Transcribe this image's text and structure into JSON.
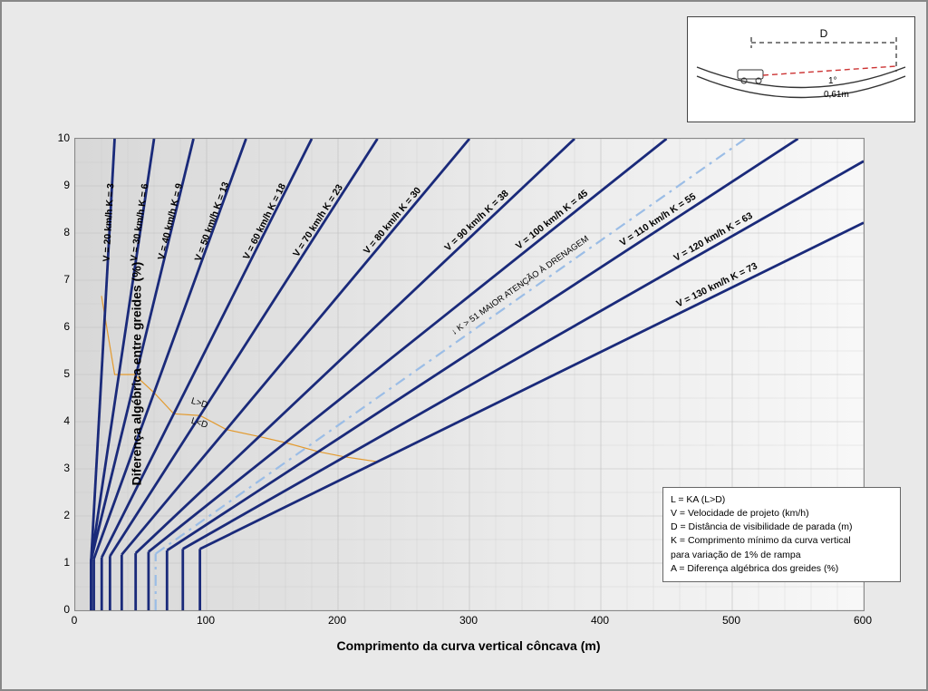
{
  "chart": {
    "type": "engineering-design-chart",
    "xlabel": "Comprimento da curva vertical côncava (m)",
    "ylabel": "Diferença algébrica entre greides (%)",
    "xlim": [
      0,
      600
    ],
    "ylim": [
      0,
      10
    ],
    "xtick_step": 100,
    "ytick_step": 1,
    "minor_x_step": 20,
    "minor_y_step": 0.5,
    "plot_bg_gradient": [
      "#d8d8d8",
      "#f8f8f8"
    ],
    "grid_color": "#bdbdbd",
    "frame_outer_bg": "#e9e9e9",
    "line_color": "#1a2a7a",
    "line_width": 2.8,
    "boundary_color": "#e39a2e",
    "boundary_width": 1.2,
    "drainage_line_color": "#9bbde6",
    "drainage_line_width": 2.2,
    "drainage_dash": "12 6 3 6",
    "label_fontsize": 10.5,
    "axis_label_fontsize": 14,
    "tick_fontsize": 12,
    "curves": [
      {
        "V": 20,
        "K": 3,
        "D": 20,
        "label": "V = 20 km/h    K = 3"
      },
      {
        "V": 30,
        "K": 6,
        "D": 30,
        "label": "V = 30 km/h    K = 6"
      },
      {
        "V": 40,
        "K": 9,
        "D": 45,
        "label": "V = 40 km/h    K = 9"
      },
      {
        "V": 50,
        "K": 13,
        "D": 60,
        "label": "V = 50 km/h    K = 13"
      },
      {
        "V": 60,
        "K": 18,
        "D": 75,
        "label": "V = 60 km/h    K = 18"
      },
      {
        "V": 70,
        "K": 23,
        "D": 95,
        "label": "V = 70 km/h    K = 23"
      },
      {
        "V": 80,
        "K": 30,
        "D": 115,
        "label": "V = 80 km/h    K = 30"
      },
      {
        "V": 90,
        "K": 38,
        "D": 140,
        "label": "V = 90 km/h    K = 38"
      },
      {
        "V": 100,
        "K": 45,
        "D": 160,
        "label": "V = 100 km/h    K = 45"
      },
      {
        "V": 110,
        "K": 55,
        "D": 185,
        "label": "V = 110 km/h    K = 55"
      },
      {
        "V": 120,
        "K": 63,
        "D": 205,
        "label": "V = 120 km/h    K = 63"
      },
      {
        "V": 130,
        "K": 73,
        "D": 230,
        "label": "V = 130 km/h    K = 73"
      }
    ],
    "drainage_K": 51,
    "drainage_label": "K > 51 MAIOR ATENÇÃO À DRENAGEM",
    "LD_labels": {
      "above": "L>D",
      "below": "L<D"
    }
  },
  "legend": {
    "rows": [
      "L = KA (L>D)",
      "V = Velocidade de projeto (km/h)",
      "D = Distância de visibilidade de parada (m)",
      "K = Comprimento mínimo da curva vertical\n        para variação de 1% de rampa",
      "A = Diferença algébrica dos greides (%)"
    ]
  },
  "inset": {
    "D_label": "D",
    "angle_label": "1°",
    "height_label": "0,61m",
    "curve_color": "#333",
    "sight_line_color": "#c33",
    "sight_line_dash": "6 4"
  }
}
